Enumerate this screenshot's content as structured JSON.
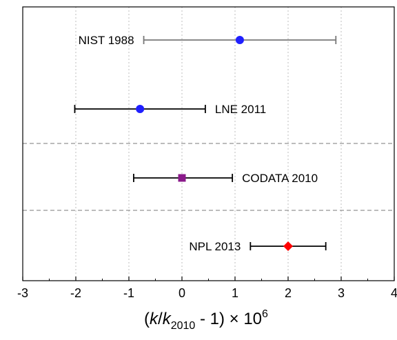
{
  "chart_data": {
    "type": "scatter",
    "title": "",
    "xlabel": {
      "open": "(",
      "k1": "k",
      "slash": "/",
      "k2": "k",
      "sub": "2010",
      "rest": " - 1) × 10",
      "sup": "6"
    },
    "ylabel": "",
    "xlim": [
      -3,
      4
    ],
    "x_ticks": [
      "-3",
      "-2",
      "-1",
      "0",
      "1",
      "2",
      "3",
      "4"
    ],
    "grid": "vertical dotted at integer x",
    "separators": "horizontal dashed lines between LNE 2011 / CODATA 2010 and CODATA 2010 / NPL 2013",
    "points": [
      {
        "label": "NIST 1988",
        "x": 1.09,
        "err_low": -0.72,
        "err_high": 2.9,
        "marker": "circle",
        "color": "#1f1fff",
        "errorbar_color": "#777777",
        "label_side": "left"
      },
      {
        "label": "LNE 2011",
        "x": -0.79,
        "err_low": -2.02,
        "err_high": 0.44,
        "marker": "circle",
        "color": "#1f1fff",
        "errorbar_color": "#000000",
        "label_side": "right"
      },
      {
        "label": "CODATA 2010",
        "x": 0.0,
        "err_low": -0.91,
        "err_high": 0.95,
        "marker": "square",
        "color": "#8a1a8a",
        "errorbar_color": "#000000",
        "label_side": "right"
      },
      {
        "label": "NPL 2013",
        "x": 2.0,
        "err_low": 1.29,
        "err_high": 2.71,
        "marker": "diamond",
        "color": "#ff0000",
        "errorbar_color": "#000000",
        "label_side": "left"
      }
    ]
  }
}
